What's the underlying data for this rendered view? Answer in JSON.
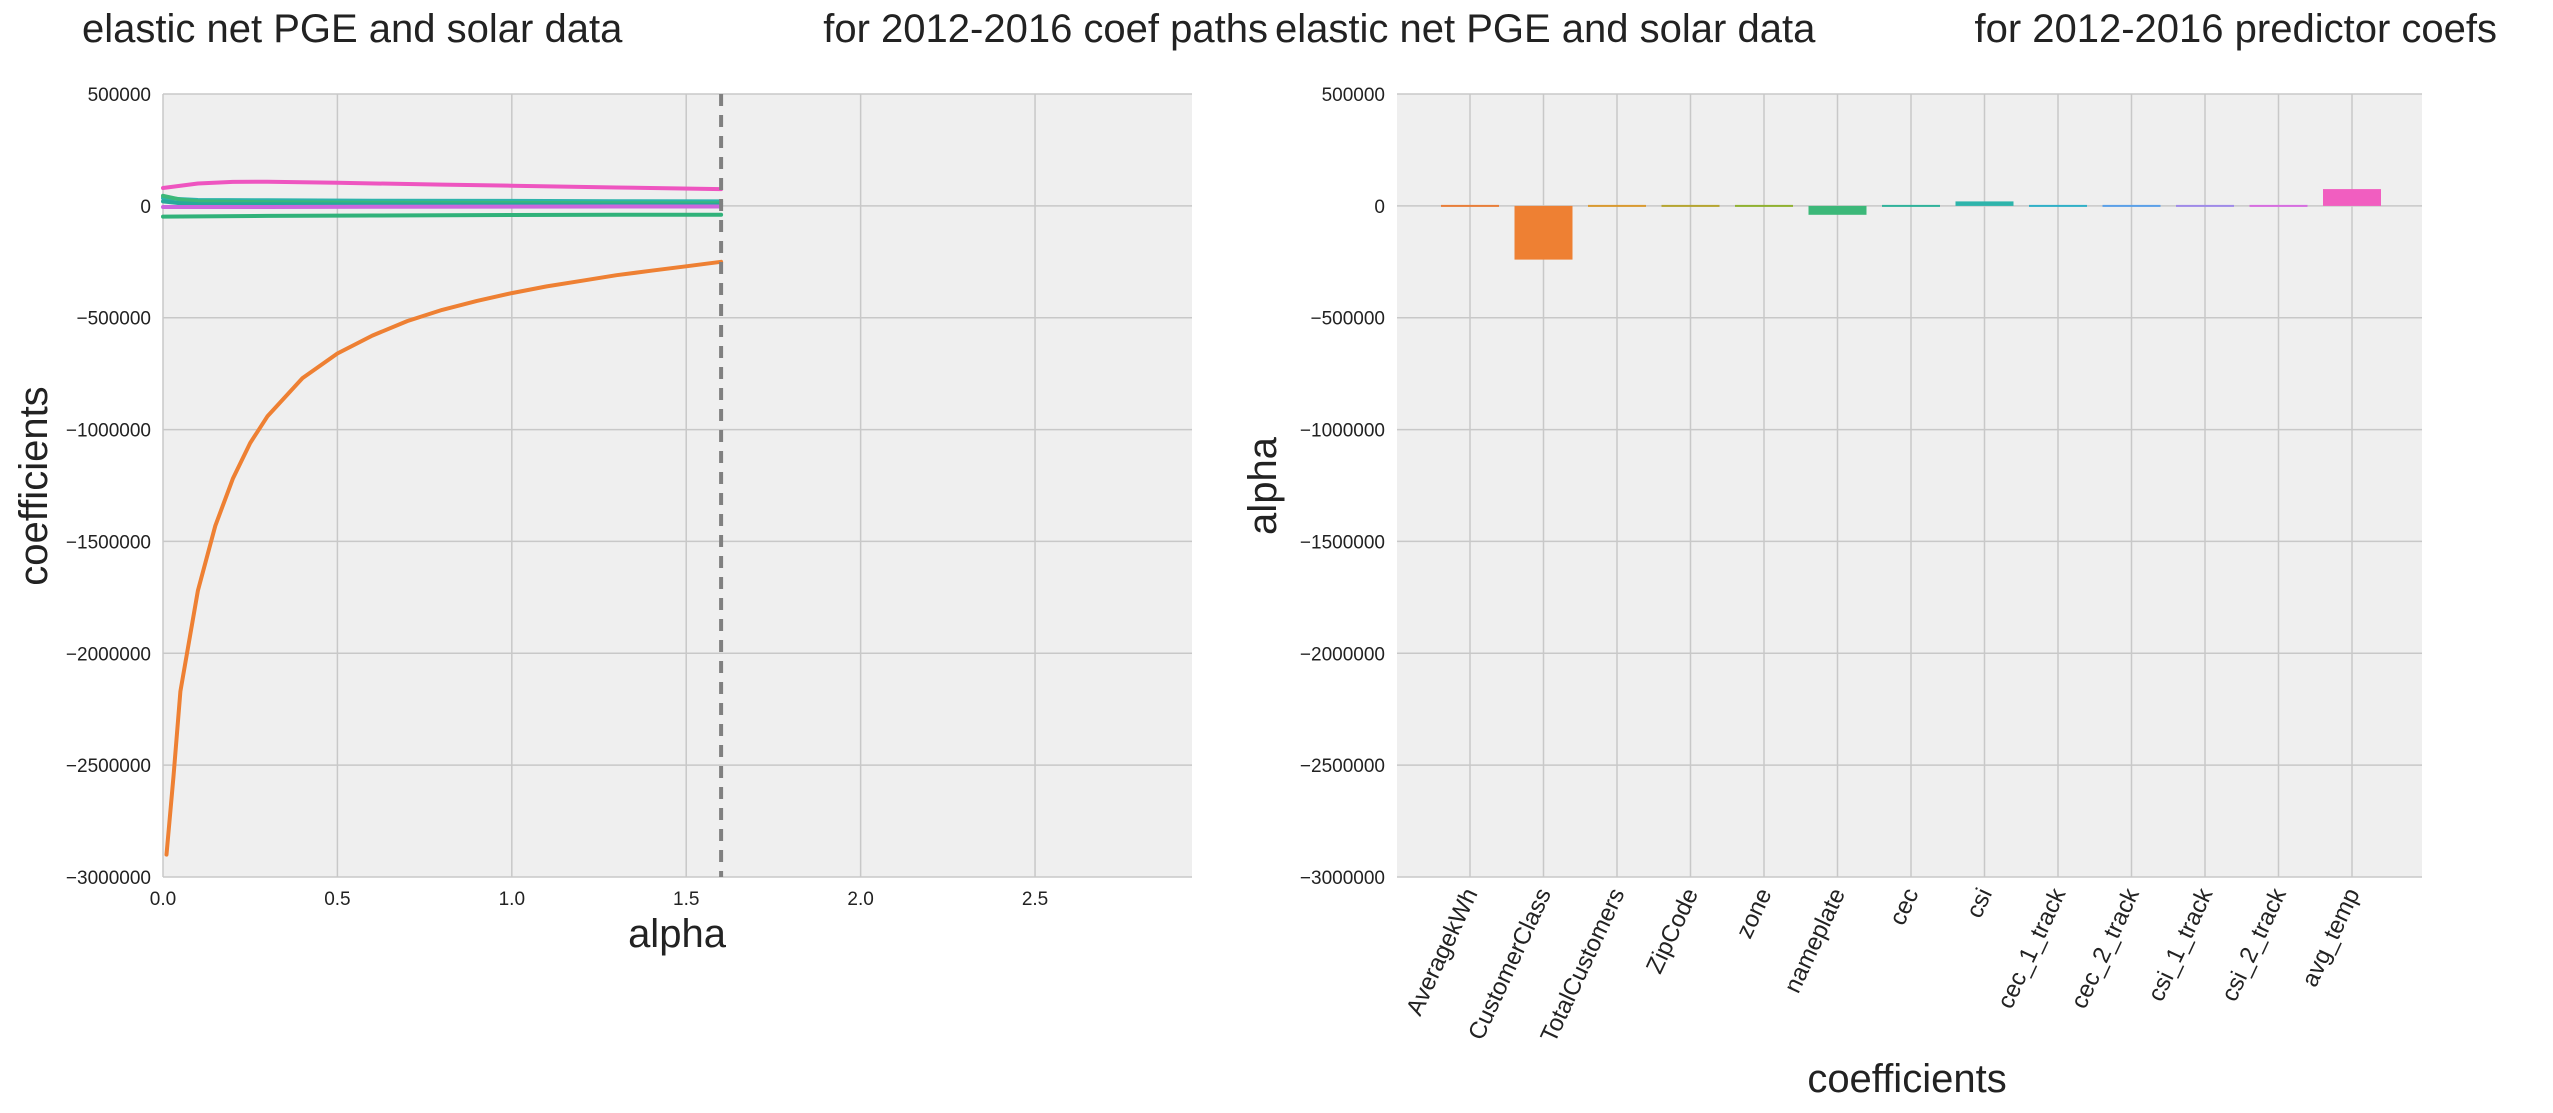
{
  "chart_data": [
    {
      "type": "line",
      "title_left": "elastic net PGE and solar data",
      "title_right": "for 2012-2016 coef paths",
      "xlabel": "alpha",
      "ylabel": "coefficients",
      "xlim": [
        0.0,
        2.95
      ],
      "ylim": [
        -3000000,
        500000
      ],
      "xticks": [
        0.0,
        0.5,
        1.0,
        1.5,
        2.0,
        2.5
      ],
      "xtick_labels": [
        "0.0",
        "0.5",
        "1.0",
        "1.5",
        "2.0",
        "2.5"
      ],
      "yticks": [
        500000,
        0,
        -500000,
        -1000000,
        -1500000,
        -2000000,
        -2500000,
        -3000000
      ],
      "ytick_labels": [
        "500000",
        "0",
        "−500000",
        "−1000000",
        "−1500000",
        "−2000000",
        "−2500000",
        "−3000000"
      ],
      "vline_x": 1.6,
      "series": [
        {
          "color": "#ee8033",
          "x": [
            0.01,
            0.03,
            0.05,
            0.1,
            0.15,
            0.2,
            0.25,
            0.3,
            0.4,
            0.5,
            0.6,
            0.7,
            0.8,
            0.9,
            1.0,
            1.1,
            1.2,
            1.3,
            1.4,
            1.5,
            1.6
          ],
          "y": [
            -2900000,
            -2550000,
            -2170000,
            -1720000,
            -1430000,
            -1220000,
            -1060000,
            -940000,
            -770000,
            -660000,
            -580000,
            -515000,
            -465000,
            -425000,
            -390000,
            -360000,
            -335000,
            -310000,
            -290000,
            -270000,
            -250000
          ]
        },
        {
          "color": "#ee55c0",
          "x": [
            0.0,
            0.1,
            0.2,
            0.3,
            0.5,
            0.8,
            1.0,
            1.3,
            1.6
          ],
          "y": [
            80000,
            100000,
            107000,
            108000,
            103000,
            95000,
            90000,
            82000,
            75000
          ]
        },
        {
          "color": "#2eb4ab",
          "x": [
            0.0,
            0.05,
            0.1,
            0.3,
            0.6,
            1.0,
            1.3,
            1.6
          ],
          "y": [
            35000,
            30000,
            26000,
            25000,
            23000,
            22000,
            21000,
            20000
          ]
        },
        {
          "color": "#3cb879",
          "x": [
            0.0,
            0.05,
            0.1,
            0.3,
            0.6,
            1.0,
            1.3,
            1.6
          ],
          "y": [
            45000,
            28000,
            20000,
            16000,
            14000,
            13000,
            12000,
            11000
          ]
        },
        {
          "color": "#28a99a",
          "x": [
            0.0,
            0.05,
            0.1,
            0.3,
            0.6,
            1.0,
            1.3,
            1.6
          ],
          "y": [
            20000,
            12000,
            8000,
            7000,
            6000,
            5500,
            5000,
            5000
          ]
        },
        {
          "color": "#cc66dd",
          "x": [
            0.0,
            0.3,
            0.6,
            1.0,
            1.3,
            1.6
          ],
          "y": [
            -5000,
            -5000,
            -4000,
            -3500,
            -3000,
            -3000
          ]
        },
        {
          "color": "#30b27a",
          "x": [
            0.0,
            0.3,
            0.6,
            1.0,
            1.3,
            1.6
          ],
          "y": [
            -48000,
            -45000,
            -43000,
            -41000,
            -40000,
            -40000
          ]
        }
      ]
    },
    {
      "type": "bar",
      "title_left": "elastic net PGE and solar data",
      "title_right": "for 2012-2016 predictor coefs",
      "xlabel": "coefficients",
      "ylabel": "alpha",
      "ylim": [
        -3000000,
        500000
      ],
      "yticks": [
        500000,
        0,
        -500000,
        -1000000,
        -1500000,
        -2000000,
        -2500000,
        -3000000
      ],
      "ytick_labels": [
        "500000",
        "0",
        "−500000",
        "−1000000",
        "−1500000",
        "−2000000",
        "−2500000",
        "−3000000"
      ],
      "categories": [
        "AveragekWh",
        "CustomerClass",
        "TotalCustomers",
        "ZipCode",
        "zone",
        "nameplate",
        "cec",
        "csi",
        "cec_1_track",
        "cec_2_track",
        "csi_1_track",
        "csi_2_track",
        "avg_temp"
      ],
      "values": [
        0,
        -240000,
        -1000,
        0,
        3000,
        -40000,
        8000,
        20000,
        0,
        0,
        0,
        0,
        75000
      ],
      "colors": [
        "#e87e3a",
        "#ee8033",
        "#d99a30",
        "#b5a530",
        "#8fb130",
        "#3cb879",
        "#30b29b",
        "#2eb4ab",
        "#30b0c8",
        "#5aa0e8",
        "#9f8ae8",
        "#d66de0",
        "#f15ec0"
      ]
    }
  ]
}
